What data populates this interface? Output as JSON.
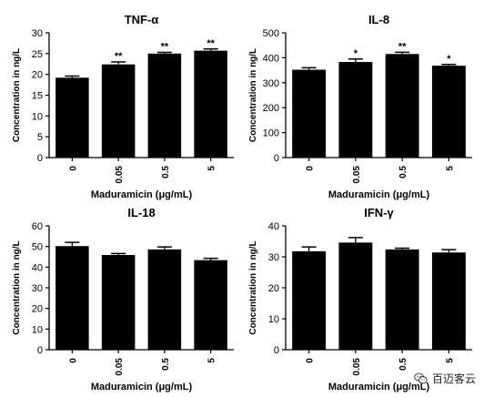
{
  "charts": [
    {
      "title": "TNF-α",
      "ylabel": "Concentration in ng/L",
      "xlabel": "Maduramicin (μg/mL)",
      "categories": [
        "0",
        "0.05",
        "0.5",
        "5"
      ],
      "values": [
        19.2,
        22.4,
        25.0,
        25.7
      ],
      "errors": [
        0.4,
        0.6,
        0.3,
        0.4
      ],
      "significance": [
        "",
        "**",
        "**",
        "**"
      ],
      "yticks": [
        "0",
        "5",
        "10",
        "15",
        "20",
        "25",
        "30"
      ],
      "ylim": [
        0,
        30
      ]
    },
    {
      "title": "IL-8",
      "ylabel": "Concentration in ng/L",
      "xlabel": "Maduramicin (μg/mL)",
      "categories": [
        "0",
        "0.05",
        "0.5",
        "5"
      ],
      "values": [
        352,
        383,
        415,
        368
      ],
      "errors": [
        8,
        12,
        7,
        5
      ],
      "significance": [
        "",
        "*",
        "**",
        "*"
      ],
      "yticks": [
        "0",
        "100",
        "200",
        "300",
        "400",
        "500"
      ],
      "ylim": [
        0,
        500
      ]
    },
    {
      "title": "IL-18",
      "ylabel": "Concentration in ng/L",
      "xlabel": "Maduramicin (μg/mL)",
      "categories": [
        "0",
        "0.05",
        "0.5",
        "5"
      ],
      "values": [
        50.2,
        45.9,
        48.6,
        43.4
      ],
      "errors": [
        1.8,
        0.7,
        1.2,
        0.9
      ],
      "significance": [
        "",
        "",
        "",
        ""
      ],
      "yticks": [
        "0",
        "10",
        "20",
        "30",
        "40",
        "50",
        "60"
      ],
      "ylim": [
        0,
        60
      ]
    },
    {
      "title": "IFN-γ",
      "ylabel": "Concentration in ng/L",
      "xlabel": "Maduramicin (μg/mL)",
      "categories": [
        "0",
        "0.05",
        "0.5",
        "5"
      ],
      "values": [
        31.8,
        34.6,
        32.4,
        31.4
      ],
      "errors": [
        1.4,
        1.6,
        0.4,
        0.9
      ],
      "significance": [
        "",
        "",
        "",
        ""
      ],
      "yticks": [
        "0",
        "10",
        "20",
        "30",
        "40"
      ],
      "ylim": [
        0,
        40
      ]
    }
  ],
  "chart_data": [
    {
      "type": "bar",
      "title": "TNF-α",
      "categories": [
        "0",
        "0.05",
        "0.5",
        "5"
      ],
      "values": [
        19.2,
        22.4,
        25.0,
        25.7
      ],
      "xlabel": "Maduramicin (μg/mL)",
      "ylabel": "Concentration in ng/L",
      "ylim": [
        0,
        30
      ]
    },
    {
      "type": "bar",
      "title": "IL-8",
      "categories": [
        "0",
        "0.05",
        "0.5",
        "5"
      ],
      "values": [
        352,
        383,
        415,
        368
      ],
      "xlabel": "Maduramicin (μg/mL)",
      "ylabel": "Concentration in ng/L",
      "ylim": [
        0,
        500
      ]
    },
    {
      "type": "bar",
      "title": "IL-18",
      "categories": [
        "0",
        "0.05",
        "0.5",
        "5"
      ],
      "values": [
        50.2,
        45.9,
        48.6,
        43.4
      ],
      "xlabel": "Maduramicin (μg/mL)",
      "ylabel": "Concentration in ng/L",
      "ylim": [
        0,
        60
      ]
    },
    {
      "type": "bar",
      "title": "IFN-γ",
      "categories": [
        "0",
        "0.05",
        "0.5",
        "5"
      ],
      "values": [
        31.8,
        34.6,
        32.4,
        31.4
      ],
      "xlabel": "Maduramicin (μg/mL)",
      "ylabel": "Concentration in ng/L",
      "ylim": [
        0,
        40
      ]
    }
  ],
  "watermark": {
    "text": "百迈客云",
    "icon": "wechat-icon"
  },
  "colors": {
    "bar": "#000000",
    "axis": "#000000"
  }
}
